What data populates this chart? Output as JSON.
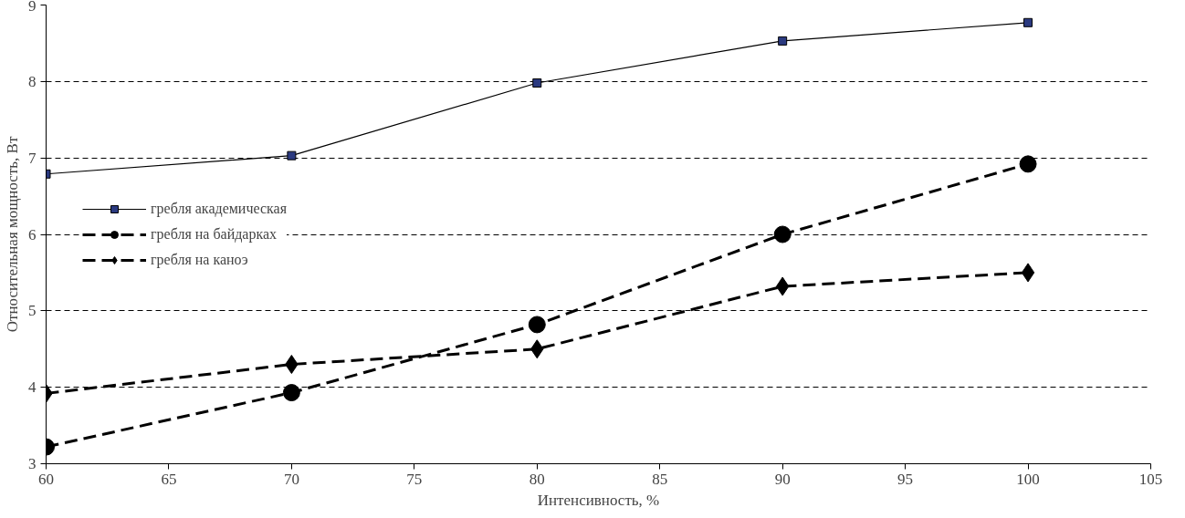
{
  "chart_data": {
    "type": "line",
    "xlabel": "Интенсивность, %",
    "ylabel": "Относительная мощность, Вт",
    "x": [
      60,
      70,
      80,
      90,
      100
    ],
    "xlim": [
      60,
      105
    ],
    "xticks": [
      60,
      65,
      70,
      75,
      80,
      85,
      90,
      95,
      100,
      105
    ],
    "ylim": [
      3,
      9
    ],
    "yticks": [
      3,
      4,
      5,
      6,
      7,
      8,
      9
    ],
    "grid": "y",
    "legend": "left",
    "series": [
      {
        "name": "гребля академическая",
        "color": "#2b3a80",
        "marker": "square",
        "line_style": "solid",
        "values": [
          6.79,
          7.03,
          7.98,
          8.53,
          8.77
        ]
      },
      {
        "name": "гребля на байдарках",
        "color": "#000000",
        "marker": "circle",
        "line_style": "dashed",
        "values": [
          3.22,
          3.93,
          4.82,
          6.0,
          6.92
        ]
      },
      {
        "name": "гребля на каноэ",
        "color": "#000000",
        "marker": "diamond",
        "line_style": "dashed",
        "values": [
          3.92,
          4.3,
          4.5,
          5.32,
          5.5
        ]
      }
    ]
  }
}
